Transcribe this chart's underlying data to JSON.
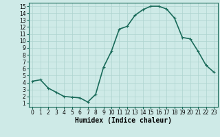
{
  "x": [
    0,
    1,
    2,
    3,
    4,
    5,
    6,
    7,
    8,
    9,
    10,
    11,
    12,
    13,
    14,
    15,
    16,
    17,
    18,
    19,
    20,
    21,
    22,
    23
  ],
  "y": [
    4.2,
    4.4,
    3.2,
    2.6,
    2.0,
    1.9,
    1.8,
    1.2,
    2.3,
    6.2,
    8.5,
    11.7,
    12.1,
    13.7,
    14.5,
    15.0,
    15.0,
    14.6,
    13.3,
    10.5,
    10.3,
    8.5,
    6.5,
    5.5
  ],
  "line_color": "#1a6b5a",
  "marker": "+",
  "marker_size": 3,
  "bg_color": "#ceeae7",
  "grid_color": "#aed4d0",
  "xlabel": "Humidex (Indice chaleur)",
  "xlim": [
    -0.5,
    23.5
  ],
  "ylim": [
    0.5,
    15.5
  ],
  "xticks": [
    0,
    1,
    2,
    3,
    4,
    5,
    6,
    7,
    8,
    9,
    10,
    11,
    12,
    13,
    14,
    15,
    16,
    17,
    18,
    19,
    20,
    21,
    22,
    23
  ],
  "yticks": [
    1,
    2,
    3,
    4,
    5,
    6,
    7,
    8,
    9,
    10,
    11,
    12,
    13,
    14,
    15
  ],
  "xlabel_fontsize": 7,
  "tick_fontsize": 5.5,
  "line_width": 1.2
}
